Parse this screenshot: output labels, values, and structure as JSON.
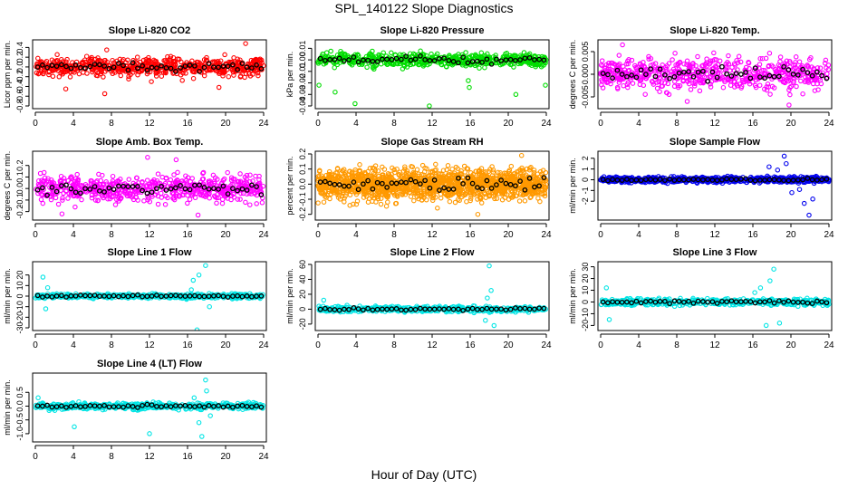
{
  "figure": {
    "title": "SPL_140122  Slope Diagnostics",
    "xlabel": "Hour of Day (UTC)"
  },
  "chart_data": [
    {
      "type": "scatter",
      "title": "Slope Li-820 CO2",
      "ylabel": "Licor ppm per min.",
      "color": "#ff0000",
      "xlim": [
        0,
        24
      ],
      "ylim": [
        -0.8,
        0.5
      ],
      "xticks": [
        0,
        4,
        8,
        12,
        16,
        20,
        24
      ],
      "yticks": [
        -0.8,
        -0.6,
        -0.4,
        -0.2,
        0,
        0.2,
        0.4
      ],
      "ytick_labels": [
        "-0.8",
        "-0.6",
        "-0.4",
        "-0.2",
        "0.0",
        "0.2",
        "0.4"
      ],
      "spread": 0.13,
      "n": 600,
      "outliers": [
        [
          3.2,
          -0.45
        ],
        [
          7.5,
          0.35
        ],
        [
          12.2,
          -0.3
        ],
        [
          19.3,
          -0.42
        ],
        [
          22.1,
          0.48
        ],
        [
          7.3,
          -0.55
        ]
      ]
    },
    {
      "type": "scatter",
      "title": "Slope Li-820 Pressure",
      "ylabel": "kPa per min.",
      "color": "#00dd00",
      "xlim": [
        0,
        24
      ],
      "ylim": [
        -0.04,
        0.015
      ],
      "xticks": [
        0,
        4,
        8,
        12,
        16,
        20,
        24
      ],
      "yticks": [
        -0.04,
        -0.03,
        -0.02,
        -0.01,
        0,
        0.01
      ],
      "ytick_labels": [
        "-0.04",
        "-0.03",
        "-0.02",
        "-0.01",
        "0.00",
        "0.01"
      ],
      "spread": 0.004,
      "n": 600,
      "outliers": [
        [
          0.1,
          -0.022
        ],
        [
          1.8,
          -0.028
        ],
        [
          3.9,
          -0.038
        ],
        [
          11.7,
          -0.04
        ],
        [
          15.8,
          -0.018
        ],
        [
          15.9,
          -0.024
        ],
        [
          20.8,
          -0.03
        ],
        [
          23.9,
          -0.022
        ]
      ]
    },
    {
      "type": "scatter",
      "title": "Slope Li-820 Temp.",
      "ylabel": "degrees C per min.",
      "color": "#ff00ff",
      "xlim": [
        0,
        24
      ],
      "ylim": [
        -0.007,
        0.007
      ],
      "xticks": [
        0,
        4,
        8,
        12,
        16,
        20,
        24
      ],
      "yticks": [
        -0.005,
        0,
        0.005
      ],
      "ytick_labels": [
        "-0.005",
        "0.000",
        "0.005"
      ],
      "spread": 0.0025,
      "n": 600,
      "outliers": [
        [
          2.3,
          0.0065
        ],
        [
          9.1,
          -0.006
        ],
        [
          19.8,
          -0.0068
        ]
      ]
    },
    {
      "type": "scatter",
      "title": "Slope Amb. Box Temp.",
      "ylabel": "degrees C per min.",
      "color": "#ff00ff",
      "xlim": [
        0,
        24
      ],
      "ylim": [
        -0.25,
        0.3
      ],
      "xticks": [
        0,
        4,
        8,
        12,
        16,
        20,
        24
      ],
      "yticks": [
        -0.2,
        -0.1,
        0,
        0.1,
        0.2
      ],
      "ytick_labels": [
        "-0.2",
        "-0.1",
        "0.0",
        "0.1",
        "0.2"
      ],
      "spread": 0.08,
      "n": 600,
      "outliers": [
        [
          11.8,
          0.27
        ],
        [
          2.8,
          -0.22
        ],
        [
          17.1,
          -0.23
        ],
        [
          14.8,
          0.25
        ]
      ]
    },
    {
      "type": "scatter",
      "title": "Slope Gas Stream RH",
      "ylabel": "percent per min.",
      "color": "#ff9900",
      "xlim": [
        0,
        24
      ],
      "ylim": [
        -0.22,
        0.2
      ],
      "xticks": [
        0,
        4,
        8,
        12,
        16,
        20,
        24
      ],
      "yticks": [
        -0.2,
        -0.1,
        0,
        0.1,
        0.2
      ],
      "ytick_labels": [
        "-0.2",
        "-0.1",
        "0.0",
        "0.1",
        "0.2"
      ],
      "spread": 0.07,
      "n": 1400,
      "outliers": [
        [
          16.8,
          -0.2
        ],
        [
          21.4,
          0.19
        ]
      ]
    },
    {
      "type": "scatter",
      "title": "Slope Sample Flow",
      "ylabel": "ml/min per min.",
      "color": "#0000ee",
      "xlim": [
        0,
        24
      ],
      "ylim": [
        -3.5,
        2.4
      ],
      "xticks": [
        0,
        4,
        8,
        12,
        16,
        20,
        24
      ],
      "yticks": [
        -2,
        -1,
        0,
        1,
        2
      ],
      "ytick_labels": [
        "-2",
        "-1",
        "0",
        "1",
        "2"
      ],
      "spread": 0.18,
      "n": 700,
      "outliers": [
        [
          17.7,
          1.2
        ],
        [
          18.6,
          0.9
        ],
        [
          19.5,
          1.5
        ],
        [
          20.1,
          -1.2
        ],
        [
          21.4,
          -2.2
        ],
        [
          21.9,
          -3.3
        ],
        [
          22.3,
          -1.8
        ],
        [
          19.3,
          2.2
        ],
        [
          20.9,
          -0.9
        ]
      ]
    },
    {
      "type": "scatter",
      "title": "Slope Line 1 Flow",
      "ylabel": "ml/min per min.",
      "color": "#00e5e5",
      "xlim": [
        0,
        24
      ],
      "ylim": [
        -30,
        30
      ],
      "xticks": [
        0,
        4,
        8,
        12,
        16,
        20,
        24
      ],
      "yticks": [
        -30,
        -20,
        -10,
        0,
        10,
        20
      ],
      "ytick_labels": [
        "-30",
        "-20",
        "-10",
        "0",
        "10",
        "20"
      ],
      "spread": 1.5,
      "n": 500,
      "outliers": [
        [
          0.8,
          18
        ],
        [
          1.1,
          -12
        ],
        [
          1.3,
          8
        ],
        [
          16.6,
          15
        ],
        [
          17.2,
          20
        ],
        [
          17.9,
          29
        ],
        [
          18.3,
          -10
        ],
        [
          17.0,
          -32
        ],
        [
          16.4,
          6
        ]
      ]
    },
    {
      "type": "scatter",
      "title": "Slope Line 2 Flow",
      "ylabel": "ml/min per min.",
      "color": "#00e5e5",
      "xlim": [
        0,
        24
      ],
      "ylim": [
        -25,
        60
      ],
      "xticks": [
        0,
        4,
        8,
        12,
        16,
        20,
        24
      ],
      "yticks": [
        -20,
        0,
        20,
        40,
        60
      ],
      "ytick_labels": [
        "-20",
        "0",
        "20",
        "40",
        "60"
      ],
      "spread": 2.5,
      "n": 500,
      "outliers": [
        [
          18.0,
          58
        ],
        [
          18.2,
          25
        ],
        [
          17.6,
          -15
        ],
        [
          18.5,
          -22
        ],
        [
          17.8,
          15
        ],
        [
          0.6,
          12
        ]
      ]
    },
    {
      "type": "scatter",
      "title": "Slope Line 3 Flow",
      "ylabel": "ml/min per min.",
      "color": "#00e5e5",
      "xlim": [
        0,
        24
      ],
      "ylim": [
        -22,
        32
      ],
      "xticks": [
        0,
        4,
        8,
        12,
        16,
        20,
        24
      ],
      "yticks": [
        -20,
        -10,
        0,
        10,
        20,
        30
      ],
      "ytick_labels": [
        "-20",
        "-10",
        "0",
        "10",
        "20",
        "30"
      ],
      "spread": 2.0,
      "n": 500,
      "outliers": [
        [
          0.6,
          12
        ],
        [
          0.9,
          -15
        ],
        [
          16.8,
          12
        ],
        [
          17.4,
          -20
        ],
        [
          17.8,
          18
        ],
        [
          18.2,
          28
        ],
        [
          18.8,
          -18
        ],
        [
          16.2,
          8
        ]
      ]
    },
    {
      "type": "scatter",
      "title": "Slope Line 4 (LT) Flow",
      "ylabel": "ml/min per min.",
      "color": "#00e5e5",
      "xlim": [
        0,
        24
      ],
      "ylim": [
        -1.2,
        1.1
      ],
      "xticks": [
        0,
        4,
        8,
        12,
        16,
        20,
        24
      ],
      "yticks": [
        -1.0,
        -0.5,
        0,
        0.5
      ],
      "ytick_labels": [
        "-1.0",
        "-0.5",
        "0.0",
        "0.5"
      ],
      "spread": 0.08,
      "n": 500,
      "outliers": [
        [
          0.3,
          0.3
        ],
        [
          4.1,
          -0.75
        ],
        [
          12.0,
          -1.0
        ],
        [
          16.7,
          0.3
        ],
        [
          17.2,
          -0.6
        ],
        [
          17.5,
          -1.1
        ],
        [
          18.0,
          0.55
        ],
        [
          18.4,
          -0.35
        ],
        [
          17.9,
          0.95
        ]
      ]
    }
  ]
}
